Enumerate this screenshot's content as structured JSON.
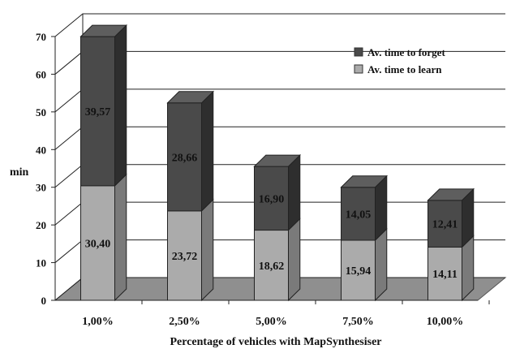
{
  "chart_data": {
    "type": "bar",
    "stacked": true,
    "three_d": true,
    "title": "",
    "xlabel": "Percentage of vehicles with MapSynthesiser",
    "ylabel": "min",
    "ylim": [
      0,
      70
    ],
    "yticks": [
      "0",
      "10",
      "20",
      "30",
      "40",
      "50",
      "60",
      "70"
    ],
    "categories": [
      "1,00%",
      "2,50%",
      "5,00%",
      "7,50%",
      "10,00%"
    ],
    "series": [
      {
        "name": "Av. time to learn",
        "values": [
          30.4,
          23.72,
          18.62,
          15.94,
          14.11
        ],
        "labels": [
          "30,40",
          "23,72",
          "18,62",
          "15,94",
          "14,11"
        ],
        "color": "#ababab"
      },
      {
        "name": "Av. time to forget",
        "values": [
          39.57,
          28.66,
          16.9,
          14.05,
          12.41
        ],
        "labels": [
          "39,57",
          "28,66",
          "16,90",
          "14,05",
          "12,41"
        ],
        "color": "#4a4a4a"
      }
    ],
    "legend_position": "top-right",
    "grid": true
  }
}
